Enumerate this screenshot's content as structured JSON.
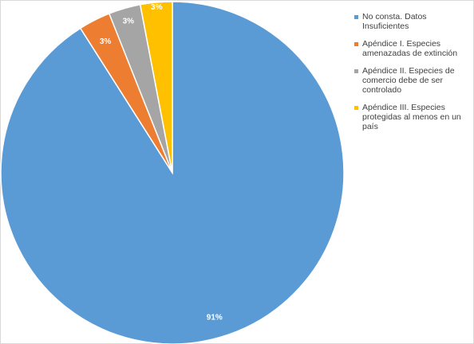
{
  "chart_data": {
    "type": "pie",
    "title": "",
    "slices": [
      {
        "name": "No consta. Datos Insuficientes",
        "value": 91,
        "label": "91%",
        "color": "#5B9BD5"
      },
      {
        "name": "Apéndice I. Especies amenazadas de extinción",
        "value": 3,
        "label": "3%",
        "color": "#ED7D31"
      },
      {
        "name": "Apéndice II. Especies de comercio debe de ser controlado",
        "value": 3,
        "label": "3%",
        "color": "#A5A5A5"
      },
      {
        "name": "Apéndice III. Especies protegidas al menos en un país",
        "value": 3,
        "label": "3%",
        "color": "#FFC000"
      }
    ],
    "legend_position": "right",
    "start_angle": "12 o'clock",
    "direction": "clockwise"
  }
}
